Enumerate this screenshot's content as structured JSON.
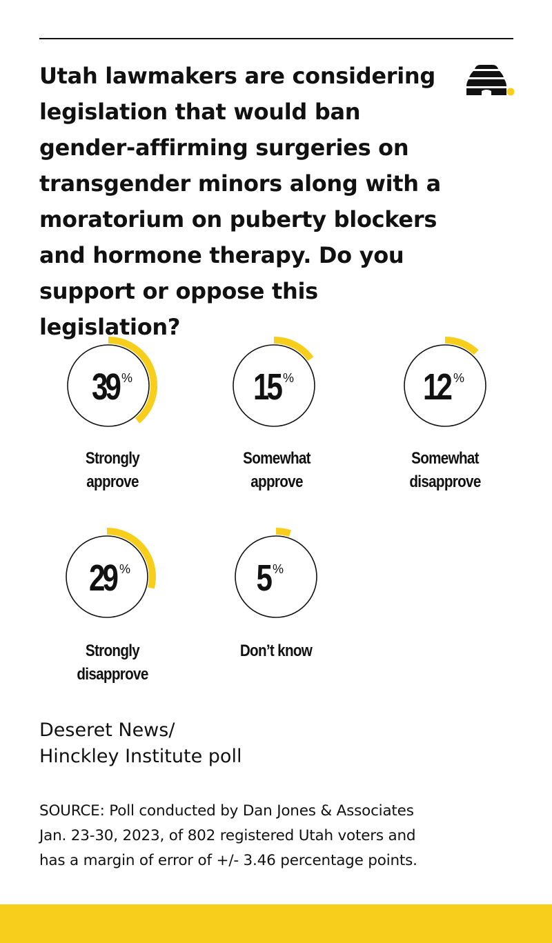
{
  "question": "Utah lawmakers are considering legislation that would ban gender-affirming surgeries on transgender minors along with a moratorium on puberty blockers and hormone therapy. Do you support or oppose this legislation?",
  "logo": {
    "icon": "beehive-icon"
  },
  "colors": {
    "accent": "#F7CE1B",
    "ink": "#111111",
    "background": "#FFFFFF"
  },
  "chart_data": {
    "type": "radial-gauge",
    "unit": "%",
    "items": [
      {
        "label_line1": "Strongly",
        "label_line2": "approve",
        "value": 39,
        "value_text": "39"
      },
      {
        "label_line1": "Somewhat",
        "label_line2": "approve",
        "value": 15,
        "value_text": "15"
      },
      {
        "label_line1": "Somewhat",
        "label_line2": "disapprove",
        "value": 12,
        "value_text": "12"
      },
      {
        "label_line1": "Strongly",
        "label_line2": "disapprove",
        "value": 29,
        "value_text": "29"
      },
      {
        "label_line1": "Don’t know",
        "label_line2": "",
        "value": 5,
        "value_text": "5"
      }
    ]
  },
  "poll_name": {
    "line1": "Deseret News/",
    "line2": "Hinckley Institute poll"
  },
  "source": {
    "line1": "SOURCE: Poll conducted by Dan Jones & Associates",
    "line2": "Jan. 23-30, 2023, of 802 registered Utah voters and",
    "line3": "has a margin of error of +/- 3.46 percentage points."
  }
}
